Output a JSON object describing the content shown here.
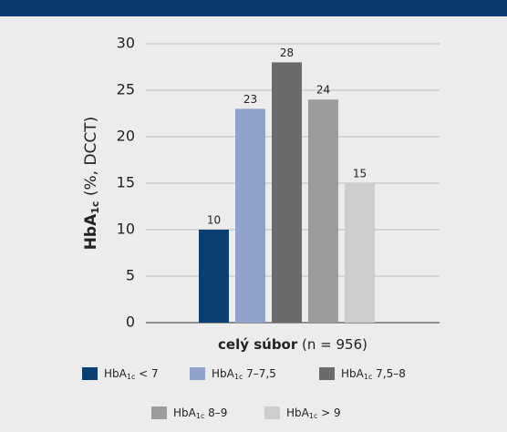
{
  "chart_data": {
    "type": "bar",
    "ylabel": {
      "main": "HbA",
      "sub": "1c",
      "rest": " (%, DCCT)"
    },
    "xlabel": {
      "main": "celý súbor",
      "rest": " (n = 956)"
    },
    "legend_prefix": {
      "main": "HbA",
      "sub": "1c"
    },
    "series": [
      {
        "name": " < 7",
        "color": "#0b3f73",
        "values": [
          10
        ]
      },
      {
        "name": " 7–7,5",
        "color": "#8fa3cc",
        "values": [
          23
        ]
      },
      {
        "name": " 7,5–8",
        "color": "#6b6b6b",
        "values": [
          28
        ]
      },
      {
        "name": " 8–9",
        "color": "#9c9c9c",
        "values": [
          24
        ]
      },
      {
        "name": " > 9",
        "color": "#cdcdcd",
        "values": [
          15
        ]
      }
    ],
    "ylim": [
      0,
      30
    ],
    "yticks": [
      0,
      5,
      10,
      15,
      20,
      25,
      30
    ],
    "grid": true
  }
}
